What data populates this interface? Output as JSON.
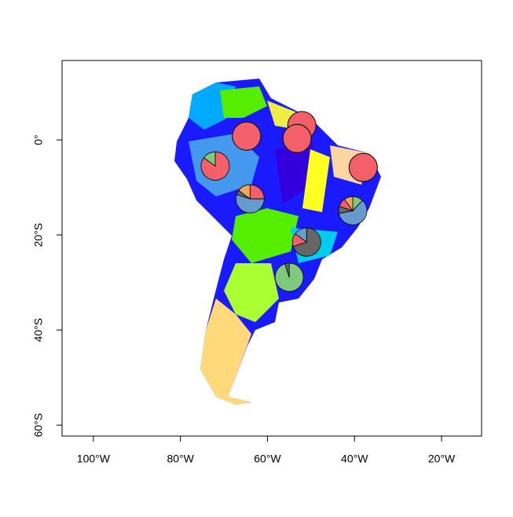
{
  "chart_data": {
    "type": "map",
    "xlim": [
      -107.2,
      -10.8
    ],
    "ylim": [
      -62.3,
      16.7
    ],
    "xticks": [
      {
        "value": -100,
        "label": "100°W"
      },
      {
        "value": -80,
        "label": "80°W"
      },
      {
        "value": -60,
        "label": "60°W"
      },
      {
        "value": -40,
        "label": "40°W"
      },
      {
        "value": -20,
        "label": "20°W"
      }
    ],
    "yticks": [
      {
        "value": 0,
        "label": "0°"
      },
      {
        "value": -20,
        "label": "20°S"
      },
      {
        "value": -40,
        "label": "40°S"
      },
      {
        "value": -60,
        "label": "60°S"
      }
    ],
    "pies": [
      {
        "lon": -64.8,
        "lat": 0.8,
        "values": [
          100
        ],
        "colors": [
          "#f4606a"
        ]
      },
      {
        "lon": -52.1,
        "lat": 3.0,
        "values": [
          100
        ],
        "colors": [
          "#f4606a"
        ]
      },
      {
        "lon": -53.2,
        "lat": 0.3,
        "values": [
          100
        ],
        "colors": [
          "#f4606a"
        ]
      },
      {
        "lon": -38.0,
        "lat": -5.8,
        "values": [
          100
        ],
        "colors": [
          "#f4606a"
        ]
      },
      {
        "lon": -72.0,
        "lat": -5.5,
        "values": [
          85,
          15
        ],
        "colors": [
          "#f4606a",
          "#7fc97f"
        ]
      },
      {
        "lon": -64.0,
        "lat": -12.4,
        "values": [
          25,
          55,
          5,
          15
        ],
        "colors": [
          "#f4606a",
          "#6699cc",
          "#666666",
          "#f2a65a"
        ]
      },
      {
        "lon": -40.4,
        "lat": -14.9,
        "values": [
          12,
          60,
          8,
          10,
          10
        ],
        "colors": [
          "#7fc97f",
          "#6699cc",
          "#666666",
          "#f4606a",
          "#f2a65a"
        ]
      },
      {
        "lon": -51.0,
        "lat": -21.5,
        "values": [
          70,
          15,
          15
        ],
        "colors": [
          "#666666",
          "#f4606a",
          "#6699cc"
        ]
      },
      {
        "lon": -55.0,
        "lat": -28.9,
        "values": [
          95,
          5
        ],
        "colors": [
          "#7fc97f",
          "#666666"
        ]
      }
    ]
  }
}
